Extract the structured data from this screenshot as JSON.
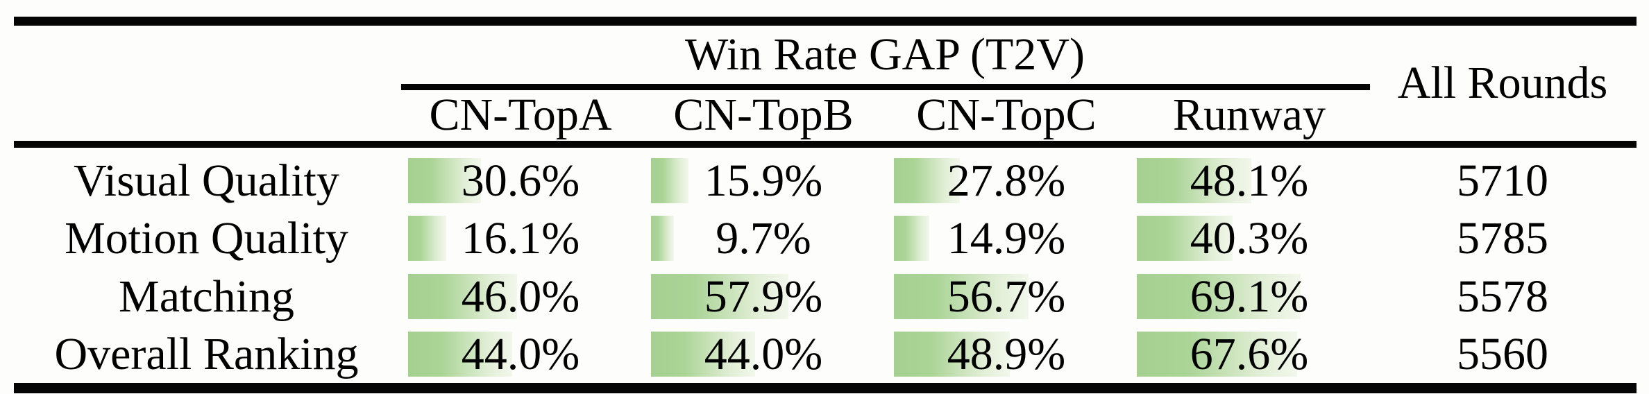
{
  "table": {
    "group_header": "Win Rate GAP (T2V)",
    "all_rounds_header": "All Rounds",
    "columns": [
      "CN-TopA",
      "CN-TopB",
      "CN-TopC",
      "Runway"
    ],
    "rows": [
      {
        "label": "Visual Quality",
        "cells": [
          {
            "value": 30.6,
            "display": "30.6%"
          },
          {
            "value": 15.9,
            "display": "15.9%"
          },
          {
            "value": 27.8,
            "display": "27.8%"
          },
          {
            "value": 48.1,
            "display": "48.1%"
          }
        ],
        "all_rounds": "5710"
      },
      {
        "label": "Motion Quality",
        "cells": [
          {
            "value": 16.1,
            "display": "16.1%"
          },
          {
            "value": 9.7,
            "display": "9.7%"
          },
          {
            "value": 14.9,
            "display": "14.9%"
          },
          {
            "value": 40.3,
            "display": "40.3%"
          }
        ],
        "all_rounds": "5785"
      },
      {
        "label": "Matching",
        "cells": [
          {
            "value": 46.0,
            "display": "46.0%"
          },
          {
            "value": 57.9,
            "display": "57.9%"
          },
          {
            "value": 56.7,
            "display": "56.7%"
          },
          {
            "value": 69.1,
            "display": "69.1%"
          }
        ],
        "all_rounds": "5578"
      },
      {
        "label": "Overall Ranking",
        "cells": [
          {
            "value": 44.0,
            "display": "44.0%"
          },
          {
            "value": 44.0,
            "display": "44.0%"
          },
          {
            "value": 48.9,
            "display": "48.9%"
          },
          {
            "value": 67.6,
            "display": "67.6%"
          }
        ],
        "all_rounds": "5560"
      }
    ],
    "colors": {
      "bar_green": "#a5d092",
      "bar_fade": "#f2f7ec",
      "rule": "#050505",
      "background": "#fdfdfc"
    }
  },
  "chart_data": {
    "type": "table",
    "title": "Win Rate GAP (T2V)",
    "categories": [
      "Visual Quality",
      "Motion Quality",
      "Matching",
      "Overall Ranking"
    ],
    "series": [
      {
        "name": "CN-TopA",
        "values": [
          30.6,
          16.1,
          46.0,
          44.0
        ]
      },
      {
        "name": "CN-TopB",
        "values": [
          15.9,
          9.7,
          57.9,
          44.0
        ]
      },
      {
        "name": "CN-TopC",
        "values": [
          27.8,
          14.9,
          56.7,
          48.9
        ]
      },
      {
        "name": "Runway",
        "values": [
          48.1,
          40.3,
          69.1,
          67.6
        ]
      },
      {
        "name": "All Rounds",
        "values": [
          5710,
          5785,
          5578,
          5560
        ]
      }
    ],
    "value_unit": "%",
    "note_bars": "green data bars proportional to percentage, gradient left-green to right-white"
  }
}
